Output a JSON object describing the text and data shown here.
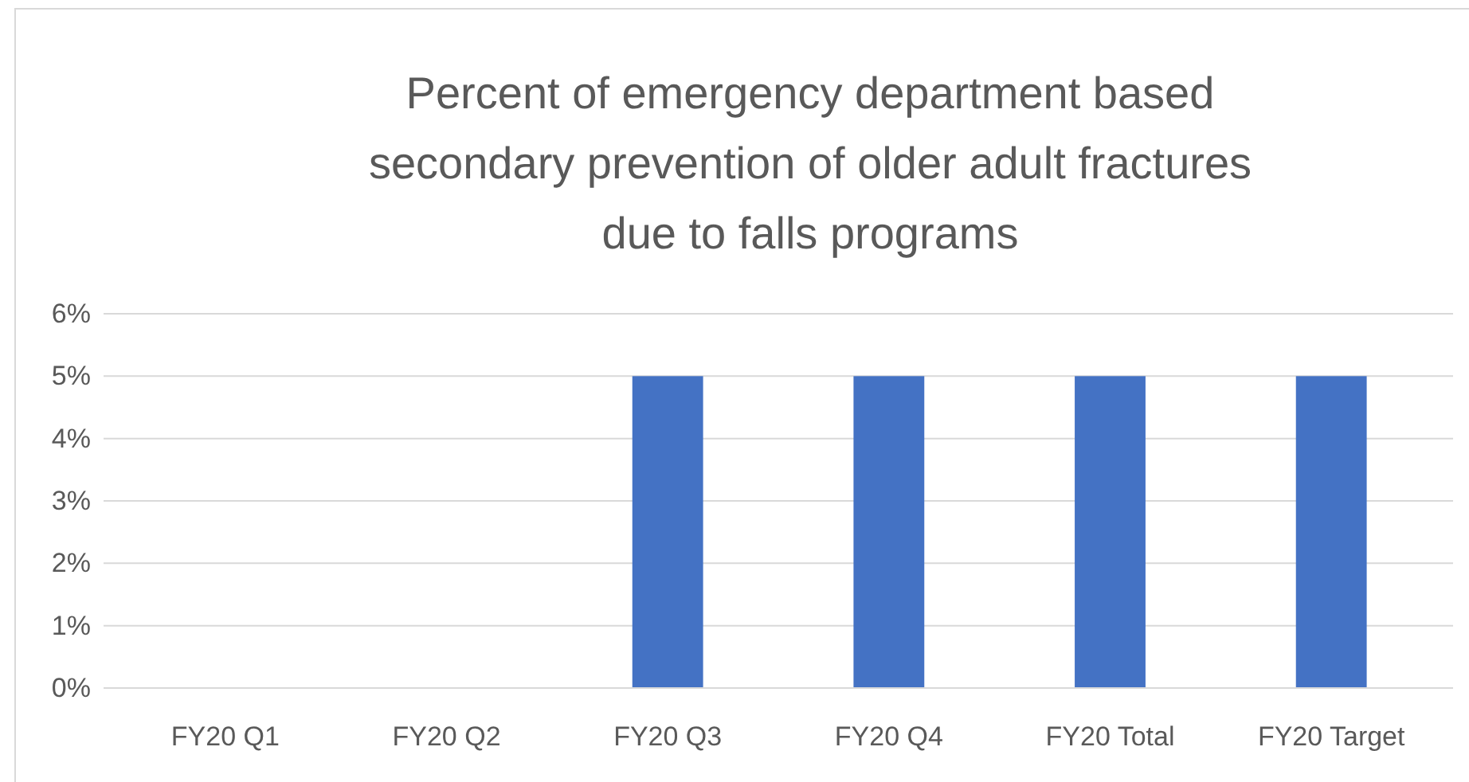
{
  "chart_data": {
    "type": "bar",
    "title": "Percent of emergency department based secondary prevention of older adult fractures due to falls programs",
    "categories": [
      "FY20 Q1",
      "FY20 Q2",
      "FY20 Q3",
      "FY20 Q4",
      "FY20 Total",
      "FY20 Target"
    ],
    "values": [
      0,
      0,
      5,
      5,
      5,
      5
    ],
    "color": "#4472c4",
    "ylim": [
      0,
      6
    ],
    "yticks": [
      {
        "value": 0,
        "label": "0%"
      },
      {
        "value": 1,
        "label": "1%"
      },
      {
        "value": 2,
        "label": "2%"
      },
      {
        "value": 3,
        "label": "3%"
      },
      {
        "value": 4,
        "label": "4%"
      },
      {
        "value": 5,
        "label": "5%"
      },
      {
        "value": 6,
        "label": "6%"
      }
    ],
    "grid": "y"
  }
}
